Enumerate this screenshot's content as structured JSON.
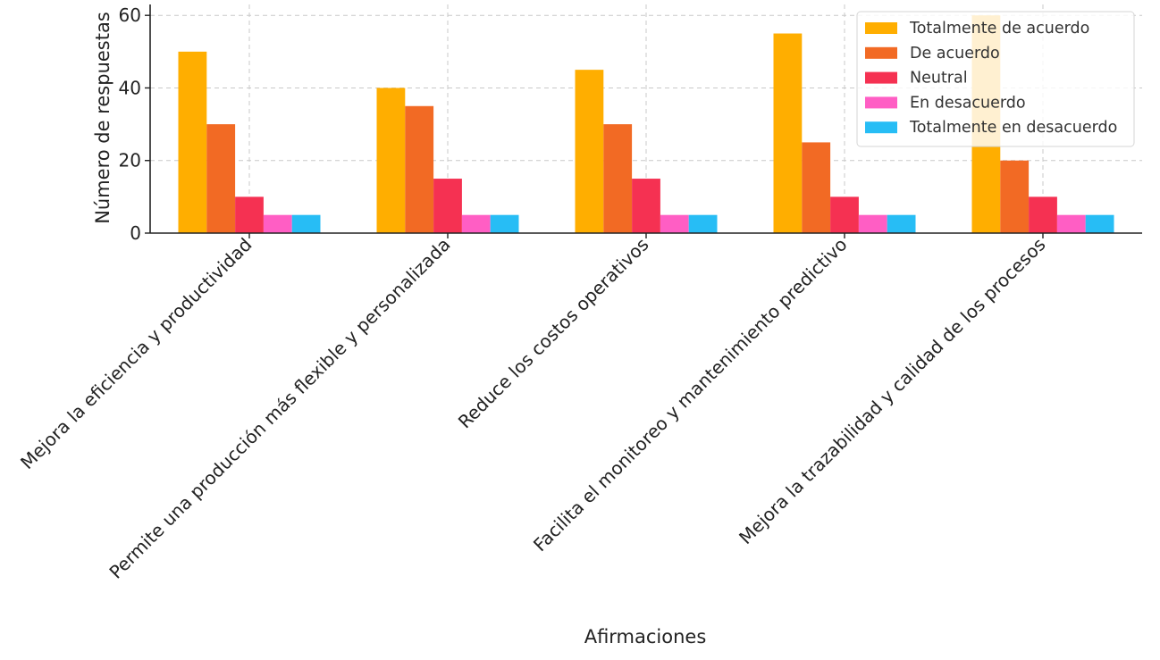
{
  "chart_data": {
    "type": "bar",
    "title": "",
    "xlabel": "Afirmaciones",
    "ylabel": "Número de respuestas",
    "ylim": [
      0,
      63
    ],
    "yticks": [
      0,
      20,
      40,
      60
    ],
    "grid": true,
    "legend_position": "top-right",
    "categories": [
      "Mejora la eficiencia y productividad",
      "Permite una producción más flexible y personalizada",
      "Reduce los costos operativos",
      "Facilita el monitoreo y mantenimiento predictivo",
      "Mejora la trazabilidad y calidad de los procesos"
    ],
    "series": [
      {
        "name": "Totalmente de acuerdo",
        "color": "#ffae00",
        "values": [
          50,
          40,
          45,
          55,
          60
        ]
      },
      {
        "name": "De acuerdo",
        "color": "#f26a24",
        "values": [
          30,
          35,
          30,
          25,
          20
        ]
      },
      {
        "name": "Neutral",
        "color": "#f53152",
        "values": [
          10,
          15,
          15,
          10,
          10
        ]
      },
      {
        "name": "En desacuerdo",
        "color": "#ff5ec4",
        "values": [
          5,
          5,
          5,
          5,
          5
        ]
      },
      {
        "name": "Totalmente en desacuerdo",
        "color": "#27bdf5",
        "values": [
          5,
          5,
          5,
          5,
          5
        ]
      }
    ]
  }
}
